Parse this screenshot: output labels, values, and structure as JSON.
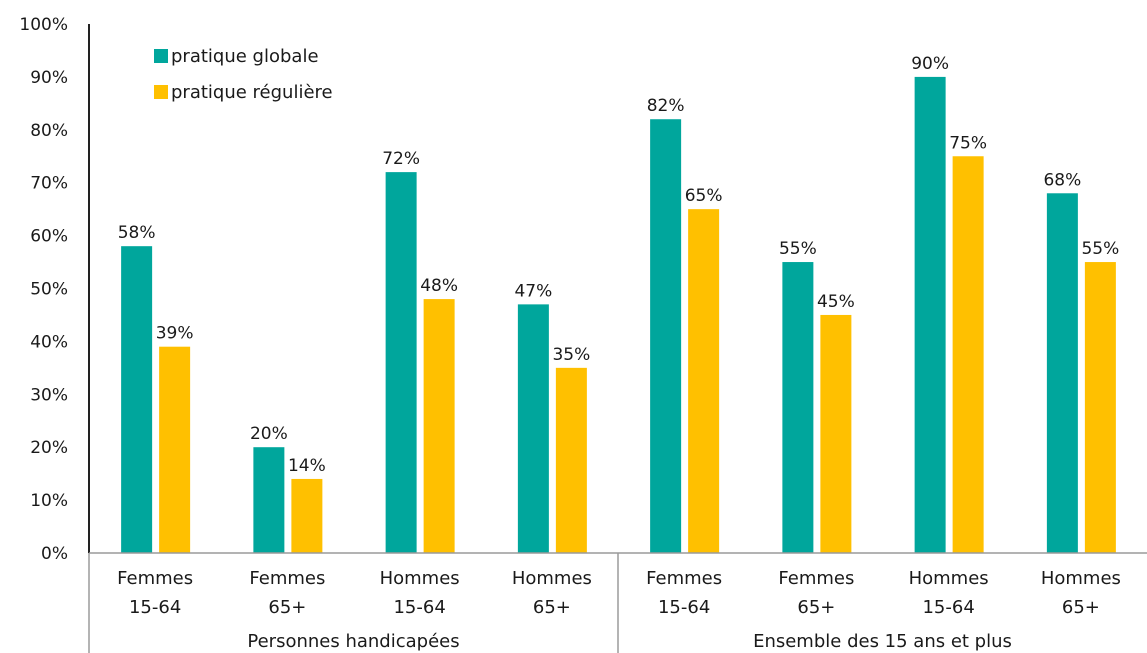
{
  "chart_data": {
    "type": "bar",
    "ylim": [
      0,
      100
    ],
    "y_ticks": [
      "0%",
      "10%",
      "20%",
      "30%",
      "40%",
      "50%",
      "60%",
      "70%",
      "80%",
      "90%",
      "100%"
    ],
    "categories": [
      {
        "line1": "Femmes",
        "line2": "15-64",
        "group": 0
      },
      {
        "line1": "Femmes",
        "line2": "65+",
        "group": 0
      },
      {
        "line1": "Hommes",
        "line2": "15-64",
        "group": 0
      },
      {
        "line1": "Hommes",
        "line2": "65+",
        "group": 0
      },
      {
        "line1": "Femmes",
        "line2": "15-64",
        "group": 1
      },
      {
        "line1": "Femmes",
        "line2": "65+",
        "group": 1
      },
      {
        "line1": "Hommes",
        "line2": "15-64",
        "group": 1
      },
      {
        "line1": "Hommes",
        "line2": "65+",
        "group": 1
      }
    ],
    "groups": [
      "Personnes handicapées",
      "Ensemble des 15 ans et plus"
    ],
    "series": [
      {
        "name": "pratique globale",
        "color": "#00A69C",
        "values": [
          58,
          20,
          72,
          47,
          82,
          55,
          90,
          68
        ]
      },
      {
        "name": "pratique régulière",
        "color": "#FFC000",
        "values": [
          39,
          14,
          48,
          35,
          65,
          45,
          75,
          55
        ]
      }
    ],
    "legend_position": "top-left",
    "grid": false
  }
}
